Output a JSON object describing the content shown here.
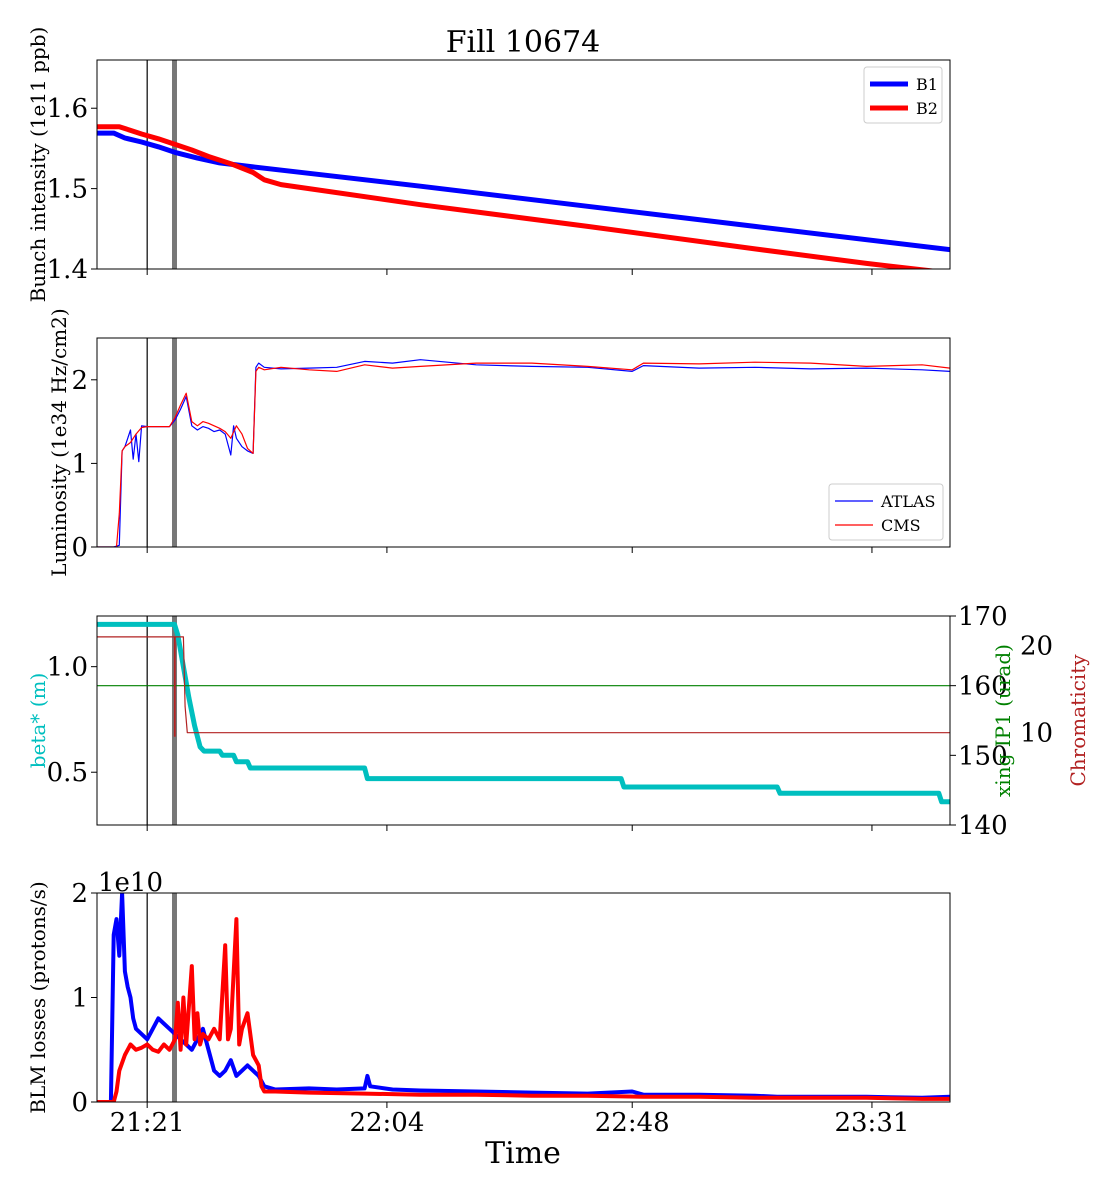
{
  "title": "Fill 10674",
  "xlabel": "Time",
  "x_ticks": [
    {
      "label": "21:21",
      "t": 1
    },
    {
      "label": "22:04",
      "t": 44
    },
    {
      "label": "22:48",
      "t": 88
    },
    {
      "label": "23:31",
      "t": 131
    }
  ],
  "x_range": [
    -8,
    145
  ],
  "markers": {
    "thin_line_t": 1,
    "thick_line_t": 5.9
  },
  "colors": {
    "b1": "#0000ff",
    "b2": "#ff0000",
    "atlas": "#0000ff",
    "cms": "#ff0000",
    "beta": "#00bfbf",
    "xing": "#008000",
    "chroma": "#b22222",
    "thick_marker": "#777777"
  },
  "chart_data": [
    {
      "type": "line",
      "ylabel": "Bunch intensity (1e11 ppb)",
      "ylim": [
        1.4,
        1.66
      ],
      "yticks": [
        "1.4",
        "1.5",
        "1.6"
      ],
      "ytick_values": [
        1.4,
        1.5,
        1.6
      ],
      "legend": "top-right",
      "series": [
        {
          "name": "B1",
          "key": "b1",
          "t": [
            -8,
            -5,
            -3,
            0,
            3,
            6,
            10,
            14,
            20,
            30,
            50,
            80,
            110,
            145
          ],
          "values": [
            1.569,
            1.569,
            1.563,
            1.558,
            1.552,
            1.545,
            1.538,
            1.532,
            1.527,
            1.519,
            1.503,
            1.478,
            1.453,
            1.424
          ]
        },
        {
          "name": "B2",
          "key": "b2",
          "t": [
            -8,
            -4,
            0,
            3,
            6,
            9,
            12,
            16,
            20,
            22,
            25,
            30,
            50,
            80,
            110,
            130,
            145
          ],
          "values": [
            1.577,
            1.577,
            1.568,
            1.562,
            1.555,
            1.548,
            1.54,
            1.531,
            1.52,
            1.511,
            1.505,
            1.5,
            1.48,
            1.453,
            1.425,
            1.407,
            1.395
          ]
        }
      ]
    },
    {
      "type": "line",
      "ylabel": "Luminosity (1e34 Hz/cm2)",
      "ylim": [
        0,
        2.5
      ],
      "yticks": [
        "0",
        "1",
        "2"
      ],
      "ytick_values": [
        0,
        1,
        2
      ],
      "legend": "bottom-right",
      "series": [
        {
          "name": "ATLAS",
          "key": "atlas",
          "t": [
            -8,
            -5,
            -4,
            -3.5,
            -3,
            -2,
            -1.5,
            -1,
            -0.5,
            0,
            1,
            5,
            6,
            7,
            8,
            9,
            10,
            11,
            12,
            13,
            14,
            15,
            16,
            16.5,
            17,
            18,
            19,
            20,
            20.5,
            21,
            22,
            25,
            30,
            35,
            40,
            45,
            50,
            60,
            70,
            80,
            88,
            90,
            100,
            110,
            120,
            130,
            140,
            145
          ],
          "values": [
            0,
            0,
            0.02,
            1.15,
            1.2,
            1.4,
            1.05,
            1.35,
            1.02,
            1.45,
            1.44,
            1.44,
            1.52,
            1.65,
            1.8,
            1.45,
            1.4,
            1.44,
            1.42,
            1.38,
            1.4,
            1.35,
            1.1,
            1.45,
            1.3,
            1.2,
            1.15,
            1.12,
            2.15,
            2.2,
            2.15,
            2.13,
            2.14,
            2.15,
            2.22,
            2.2,
            2.24,
            2.18,
            2.16,
            2.15,
            2.1,
            2.17,
            2.14,
            2.15,
            2.13,
            2.14,
            2.12,
            2.1
          ]
        },
        {
          "name": "CMS",
          "key": "cms",
          "t": [
            -8,
            -4.5,
            -4,
            -3.5,
            -3,
            -2,
            -1,
            0,
            1,
            5,
            6,
            7,
            8,
            9,
            10,
            11,
            12,
            13,
            14,
            15,
            16,
            17,
            18,
            19,
            20,
            20.5,
            21,
            22,
            25,
            30,
            35,
            40,
            45,
            50,
            60,
            70,
            80,
            88,
            90,
            100,
            110,
            120,
            130,
            140,
            145
          ],
          "values": [
            0,
            0,
            0.4,
            1.15,
            1.2,
            1.25,
            1.35,
            1.43,
            1.44,
            1.44,
            1.55,
            1.7,
            1.84,
            1.5,
            1.45,
            1.5,
            1.48,
            1.45,
            1.42,
            1.38,
            1.3,
            1.45,
            1.35,
            1.18,
            1.12,
            2.1,
            2.15,
            2.12,
            2.15,
            2.12,
            2.1,
            2.18,
            2.14,
            2.16,
            2.2,
            2.2,
            2.16,
            2.12,
            2.2,
            2.19,
            2.21,
            2.2,
            2.16,
            2.18,
            2.14
          ]
        }
      ]
    },
    {
      "type": "line",
      "ylabel": "beta* (m)",
      "ylim": [
        0.25,
        1.24
      ],
      "yticks": [
        "0.5",
        "1.0"
      ],
      "ytick_values": [
        0.5,
        1.0
      ],
      "y2label": "xing IP1 (urad)",
      "y2lim": [
        140,
        170
      ],
      "y2ticks": [
        "140",
        "150",
        "160",
        "170"
      ],
      "y2tick_values": [
        140,
        150,
        160,
        170
      ],
      "y3label": "Chromaticity",
      "y3lim": [
        -0.6,
        23.4
      ],
      "y3ticks": [
        "10",
        "20"
      ],
      "y3tick_values": [
        10,
        20
      ],
      "series": [
        {
          "name": "beta*",
          "key": "beta",
          "t": [
            -8,
            5.9,
            6.5,
            7.5,
            8.5,
            9.5,
            10.5,
            11.2,
            14,
            14.5,
            16.5,
            17,
            19,
            19.5,
            40,
            40.5,
            86,
            86.5,
            114,
            114.5,
            143,
            143.5,
            145
          ],
          "values": [
            1.2,
            1.2,
            1.15,
            1.0,
            0.85,
            0.72,
            0.62,
            0.6,
            0.6,
            0.58,
            0.58,
            0.55,
            0.55,
            0.52,
            0.52,
            0.47,
            0.47,
            0.43,
            0.43,
            0.4,
            0.4,
            0.36,
            0.36
          ]
        },
        {
          "name": "xing IP1",
          "key": "xing",
          "axis": "y2",
          "t": [
            -8,
            145
          ],
          "values": [
            160,
            160
          ]
        },
        {
          "name": "Chromaticity",
          "key": "chroma",
          "axis": "y3",
          "t": [
            -8,
            5.9,
            5.9,
            6.0,
            6.0,
            7.5,
            7.8,
            8.2,
            145
          ],
          "values": [
            21.0,
            21.0,
            9.6,
            9.6,
            21.0,
            21.0,
            13.0,
            10.0,
            10.0
          ]
        }
      ]
    },
    {
      "type": "line",
      "ylabel": "BLM losses (protons/s)",
      "ylim": [
        0,
        2
      ],
      "yticks": [
        "0",
        "1",
        "2"
      ],
      "ytick_values": [
        0,
        1,
        2
      ],
      "scale_label": "1e10",
      "series": [
        {
          "name": "B1",
          "key": "b1",
          "t": [
            -8,
            -5.5,
            -5,
            -4.5,
            -4,
            -3.5,
            -3,
            -2.5,
            -2,
            -1.5,
            -1,
            0,
            1,
            2,
            3,
            4,
            5,
            6,
            7,
            8,
            9,
            10,
            11,
            12,
            13,
            14,
            15,
            16,
            17,
            18,
            19,
            20,
            21,
            22,
            24,
            30,
            35,
            40,
            40.5,
            41,
            45,
            50,
            60,
            70,
            80,
            88,
            90,
            100,
            110,
            114,
            120,
            130,
            140,
            145
          ],
          "values": [
            0,
            0,
            1.6,
            1.75,
            1.4,
            2.0,
            1.25,
            1.1,
            1.0,
            0.8,
            0.7,
            0.65,
            0.6,
            0.7,
            0.8,
            0.75,
            0.7,
            0.65,
            0.6,
            0.55,
            0.5,
            0.6,
            0.7,
            0.5,
            0.3,
            0.25,
            0.3,
            0.4,
            0.25,
            0.3,
            0.35,
            0.3,
            0.25,
            0.15,
            0.12,
            0.13,
            0.12,
            0.13,
            0.25,
            0.15,
            0.12,
            0.11,
            0.1,
            0.09,
            0.08,
            0.1,
            0.07,
            0.07,
            0.06,
            0.05,
            0.05,
            0.05,
            0.04,
            0.05
          ]
        },
        {
          "name": "B2",
          "key": "b2",
          "t": [
            -8,
            -5,
            -4.5,
            -4,
            -3,
            -2,
            -1,
            0,
            1,
            2,
            3,
            4,
            5,
            6,
            6.5,
            7,
            7.5,
            8,
            9,
            9.5,
            10,
            10.5,
            11,
            12,
            13,
            14,
            15,
            15.5,
            16,
            17,
            17.5,
            18,
            19,
            20,
            21,
            21.5,
            22,
            24,
            30,
            40,
            50,
            60,
            70,
            80,
            90,
            100,
            110,
            120,
            130,
            140,
            145
          ],
          "values": [
            0,
            0,
            0.1,
            0.3,
            0.45,
            0.55,
            0.5,
            0.52,
            0.55,
            0.5,
            0.48,
            0.55,
            0.5,
            0.6,
            0.95,
            0.5,
            1.0,
            0.55,
            1.3,
            0.6,
            0.85,
            0.55,
            0.65,
            0.6,
            0.7,
            0.6,
            1.5,
            0.6,
            0.7,
            1.75,
            0.55,
            0.7,
            0.85,
            0.45,
            0.35,
            0.15,
            0.1,
            0.1,
            0.09,
            0.08,
            0.07,
            0.07,
            0.06,
            0.06,
            0.05,
            0.05,
            0.04,
            0.04,
            0.04,
            0.03,
            0.03
          ]
        }
      ]
    }
  ]
}
